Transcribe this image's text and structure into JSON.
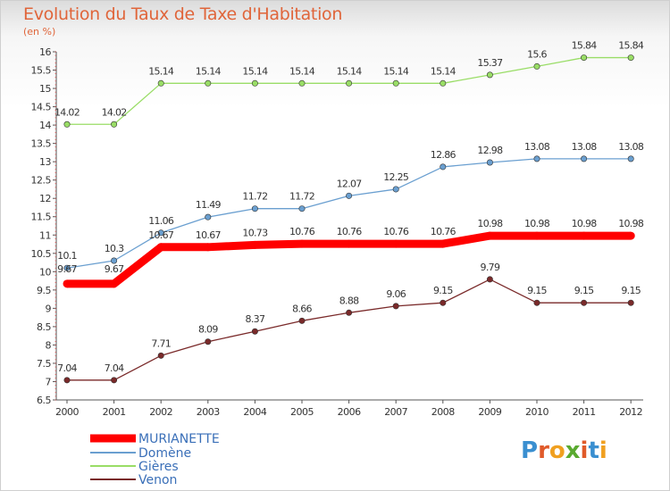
{
  "header": {
    "title": "Evolution du Taux de Taxe d'Habitation",
    "subtitle": "(en %)"
  },
  "logo": {
    "letters": [
      "P",
      "r",
      "o",
      "x",
      "i",
      "t",
      "i"
    ],
    "colors": [
      "#3a8fd0",
      "#e05a2a",
      "#f0a020",
      "#5aaa30",
      "#e05a2a",
      "#3a8fd0",
      "#f0a020"
    ]
  },
  "chart_data": {
    "type": "line",
    "title": "Evolution du Taux de Taxe d'Habitation",
    "ylabel": "(en %)",
    "xlabel": "",
    "x": [
      "2000",
      "2001",
      "2002",
      "2003",
      "2004",
      "2005",
      "2006",
      "2007",
      "2008",
      "2009",
      "2010",
      "2011",
      "2012"
    ],
    "ylim": [
      6.5,
      16
    ],
    "yticks": [
      "6.5",
      "7",
      "7.5",
      "8",
      "8.5",
      "9",
      "9.5",
      "10",
      "10.5",
      "11",
      "11.5",
      "12",
      "12.5",
      "13",
      "13.5",
      "14",
      "14.5",
      "15",
      "15.5",
      "16"
    ],
    "grid": false,
    "legend_position": "bottom-left",
    "series": [
      {
        "name": "MURIANETTE",
        "color": "#ff0000",
        "values": [
          9.67,
          9.67,
          10.67,
          10.67,
          10.73,
          10.76,
          10.76,
          10.76,
          10.76,
          10.98,
          10.98,
          10.98,
          10.98
        ],
        "labels": [
          "9.67",
          "9.67",
          "10.67",
          "10.67",
          "10.73",
          "10.76",
          "10.76",
          "10.76",
          "10.76",
          "10.98",
          "10.98",
          "10.98",
          "10.98"
        ]
      },
      {
        "name": "Domène",
        "color": "#6a9fd0",
        "values": [
          10.1,
          10.3,
          11.06,
          11.49,
          11.72,
          11.72,
          12.07,
          12.25,
          12.86,
          12.98,
          13.08,
          13.08,
          13.08
        ],
        "labels": [
          "10.1",
          "10.3",
          "11.06",
          "11.49",
          "11.72",
          "11.72",
          "12.07",
          "12.25",
          "12.86",
          "12.98",
          "13.08",
          "13.08",
          "13.08"
        ]
      },
      {
        "name": "Gières",
        "color": "#99dd66",
        "values": [
          14.02,
          14.02,
          15.14,
          15.14,
          15.14,
          15.14,
          15.14,
          15.14,
          15.14,
          15.37,
          15.6,
          15.84,
          15.84
        ],
        "labels": [
          "14.02",
          "14.02",
          "15.14",
          "15.14",
          "15.14",
          "15.14",
          "15.14",
          "15.14",
          "15.14",
          "15.37",
          "15.6",
          "15.84",
          "15.84"
        ]
      },
      {
        "name": "Venon",
        "color": "#7a2a2a",
        "values": [
          7.04,
          7.04,
          7.71,
          8.09,
          8.37,
          8.66,
          8.88,
          9.06,
          9.15,
          9.79,
          9.15,
          9.15,
          9.15
        ],
        "labels": [
          "7.04",
          "7.04",
          "7.71",
          "8.09",
          "8.37",
          "8.66",
          "8.88",
          "9.06",
          "9.15",
          "9.79",
          "9.15",
          "9.15",
          "9.15"
        ]
      }
    ]
  }
}
